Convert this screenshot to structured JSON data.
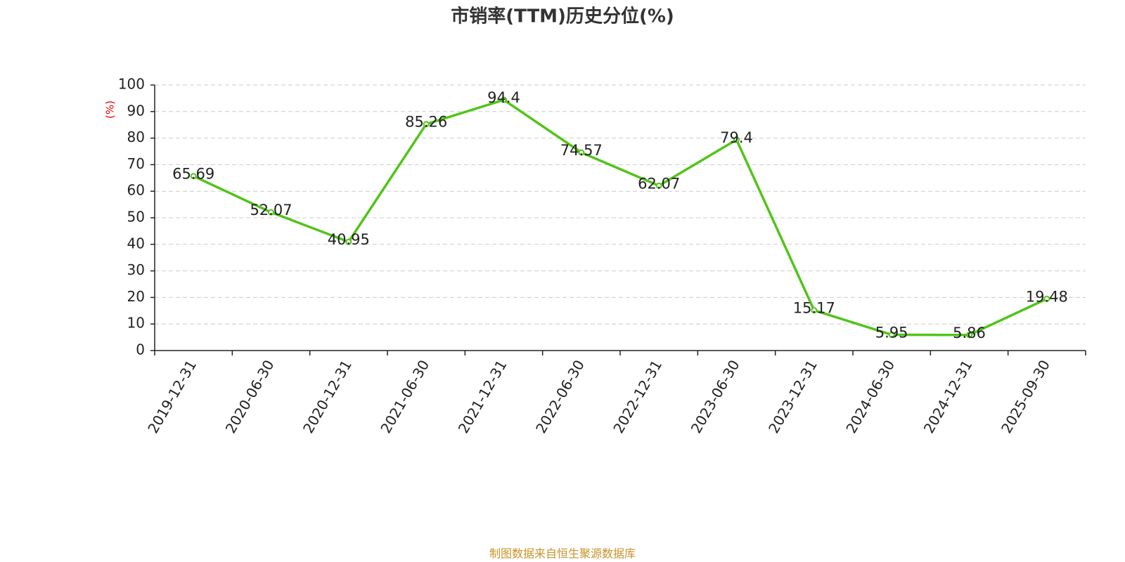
{
  "chart_data": {
    "type": "line",
    "title": "市销率(TTM)历史分位(%)",
    "y_label": "(%)",
    "source": "制图数据来自恒生聚源数据库",
    "categories": [
      "2019-12-31",
      "2020-06-30",
      "2020-12-31",
      "2021-06-30",
      "2021-12-31",
      "2022-06-30",
      "2022-12-31",
      "2023-06-30",
      "2023-12-31",
      "2024-06-30",
      "2024-12-31",
      "2025-09-30"
    ],
    "series": [
      {
        "name": "市销率(TTM)历史分位",
        "color": "#52c41a",
        "values": [
          65.69,
          52.07,
          40.95,
          85.26,
          94.4,
          74.57,
          62.07,
          79.4,
          15.17,
          5.95,
          5.86,
          19.48
        ]
      }
    ],
    "ylim": [
      0,
      100
    ],
    "yticks": [
      0,
      10,
      20,
      30,
      40,
      50,
      60,
      70,
      80,
      90,
      100
    ],
    "grid": true
  }
}
